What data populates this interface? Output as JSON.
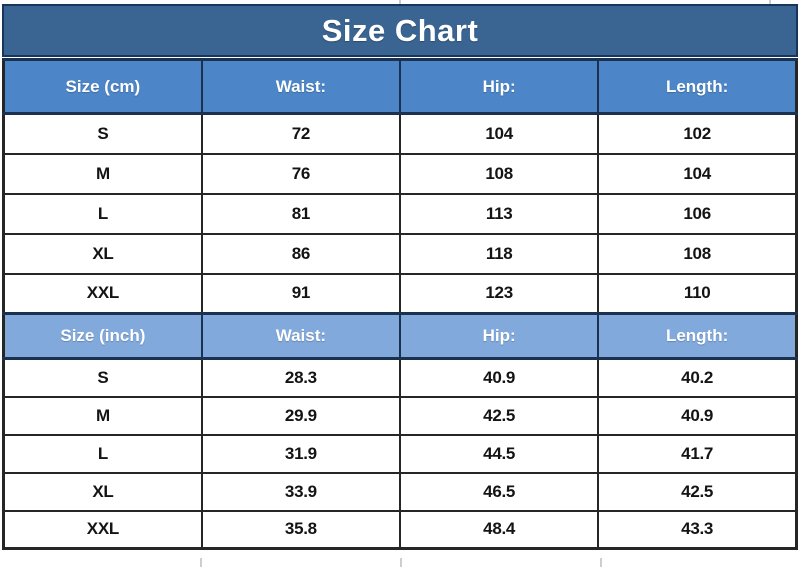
{
  "title": "Size Chart",
  "colors": {
    "page_bg": "#FFFFFF",
    "title_bg": "#3A6491",
    "title_border": "#17365D",
    "header_cm_bg": "#4C86C8",
    "header_inch_bg": "#82A9DC",
    "header_border": "#1C3150",
    "grid_border": "#262626",
    "text_dark": "#141414",
    "text_light": "#FFFFFF",
    "artifact_line": "#C9CDD4"
  },
  "chart_data": {
    "type": "table",
    "title": "Size Chart",
    "tables": [
      {
        "unit": "cm",
        "headers": [
          "Size (cm)",
          "Waist:",
          "Hip:",
          "Length:"
        ],
        "rows": [
          [
            "S",
            "72",
            "104",
            "102"
          ],
          [
            "M",
            "76",
            "108",
            "104"
          ],
          [
            "L",
            "81",
            "113",
            "106"
          ],
          [
            "XL",
            "86",
            "118",
            "108"
          ],
          [
            "XXL",
            "91",
            "123",
            "110"
          ]
        ]
      },
      {
        "unit": "inch",
        "headers": [
          "Size (inch)",
          "Waist:",
          "Hip:",
          "Length:"
        ],
        "rows": [
          [
            "S",
            "28.3",
            "40.9",
            "40.2"
          ],
          [
            "M",
            "29.9",
            "42.5",
            "40.9"
          ],
          [
            "L",
            "31.9",
            "44.5",
            "41.7"
          ],
          [
            "XL",
            "33.9",
            "46.5",
            "42.5"
          ],
          [
            "XXL",
            "35.8",
            "48.4",
            "43.3"
          ]
        ]
      }
    ]
  }
}
